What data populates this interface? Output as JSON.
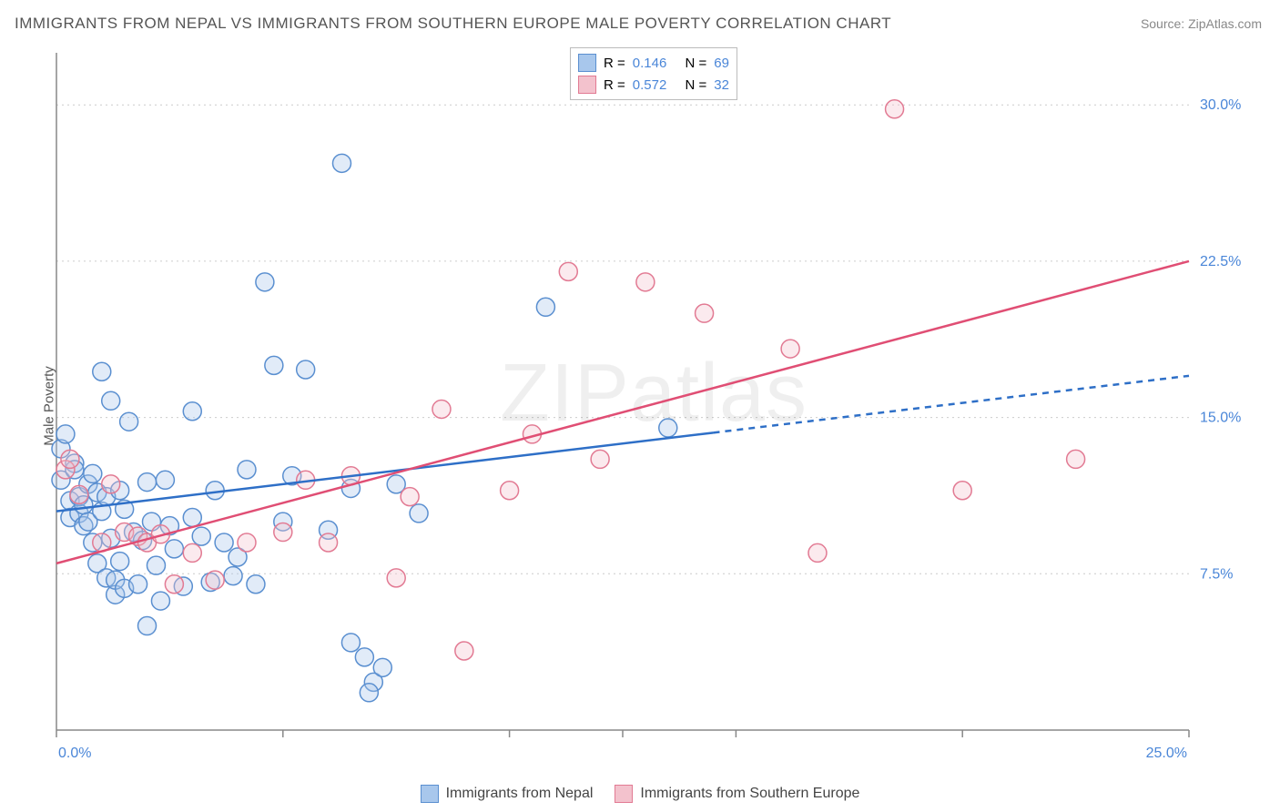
{
  "title": "IMMIGRANTS FROM NEPAL VS IMMIGRANTS FROM SOUTHERN EUROPE MALE POVERTY CORRELATION CHART",
  "source": "Source: ZipAtlas.com",
  "ylabel": "Male Poverty",
  "watermark": "ZIPatlas",
  "chart": {
    "type": "scatter",
    "background_color": "#ffffff",
    "grid_color": "#cccccc",
    "axis_color": "#888888",
    "tick_color": "#4a86d8",
    "xlim": [
      0,
      25
    ],
    "ylim": [
      0,
      32.5
    ],
    "xticks": [
      {
        "v": 0,
        "l": "0.0%"
      },
      {
        "v": 25,
        "l": "25.0%"
      }
    ],
    "xtick_minor": [
      5,
      10,
      12.5,
      15,
      20
    ],
    "yticks": [
      {
        "v": 7.5,
        "l": "7.5%"
      },
      {
        "v": 15,
        "l": "15.0%"
      },
      {
        "v": 22.5,
        "l": "22.5%"
      },
      {
        "v": 30,
        "l": "30.0%"
      }
    ],
    "marker_radius": 10,
    "marker_stroke_width": 1.5,
    "marker_fill_opacity": 0.35,
    "watermark_fontsize": 90,
    "title_fontsize": 17,
    "tick_fontsize": 16
  },
  "series": [
    {
      "name": "Immigrants from Nepal",
      "fill": "#a8c7ec",
      "stroke": "#5a8fd0",
      "trend_color": "#2e6fc7",
      "trend_dash": "none_then_dash",
      "trend_y_at_x0": 10.5,
      "trend_y_at_x25": 17.0,
      "r": "0.146",
      "n": "69",
      "points": [
        [
          0.1,
          13.5
        ],
        [
          0.1,
          12.0
        ],
        [
          0.2,
          14.2
        ],
        [
          0.3,
          11.0
        ],
        [
          0.3,
          10.2
        ],
        [
          0.4,
          12.8
        ],
        [
          0.4,
          12.5
        ],
        [
          0.5,
          10.4
        ],
        [
          0.5,
          11.2
        ],
        [
          0.6,
          9.8
        ],
        [
          0.6,
          10.8
        ],
        [
          0.7,
          11.8
        ],
        [
          0.7,
          10.0
        ],
        [
          0.8,
          12.3
        ],
        [
          0.8,
          9.0
        ],
        [
          0.9,
          11.4
        ],
        [
          0.9,
          8.0
        ],
        [
          1.0,
          17.2
        ],
        [
          1.0,
          10.5
        ],
        [
          1.1,
          11.2
        ],
        [
          1.1,
          7.3
        ],
        [
          1.2,
          15.8
        ],
        [
          1.2,
          9.2
        ],
        [
          1.3,
          6.5
        ],
        [
          1.3,
          7.2
        ],
        [
          1.4,
          11.5
        ],
        [
          1.4,
          8.1
        ],
        [
          1.5,
          10.6
        ],
        [
          1.5,
          6.8
        ],
        [
          1.6,
          14.8
        ],
        [
          1.7,
          9.5
        ],
        [
          1.8,
          7.0
        ],
        [
          1.9,
          9.1
        ],
        [
          2.0,
          11.9
        ],
        [
          2.0,
          5.0
        ],
        [
          2.1,
          10.0
        ],
        [
          2.2,
          7.9
        ],
        [
          2.3,
          6.2
        ],
        [
          2.4,
          12.0
        ],
        [
          2.5,
          9.8
        ],
        [
          2.6,
          8.7
        ],
        [
          2.8,
          6.9
        ],
        [
          3.0,
          15.3
        ],
        [
          3.0,
          10.2
        ],
        [
          3.2,
          9.3
        ],
        [
          3.4,
          7.1
        ],
        [
          3.5,
          11.5
        ],
        [
          3.7,
          9.0
        ],
        [
          3.9,
          7.4
        ],
        [
          4.0,
          8.3
        ],
        [
          4.2,
          12.5
        ],
        [
          4.4,
          7.0
        ],
        [
          4.6,
          21.5
        ],
        [
          4.8,
          17.5
        ],
        [
          5.0,
          10.0
        ],
        [
          5.2,
          12.2
        ],
        [
          5.5,
          17.3
        ],
        [
          6.0,
          9.6
        ],
        [
          6.3,
          27.2
        ],
        [
          6.5,
          11.6
        ],
        [
          6.8,
          3.5
        ],
        [
          7.0,
          2.3
        ],
        [
          7.2,
          3.0
        ],
        [
          7.5,
          11.8
        ],
        [
          8.0,
          10.4
        ],
        [
          10.8,
          20.3
        ],
        [
          13.5,
          14.5
        ],
        [
          6.9,
          1.8
        ],
        [
          6.5,
          4.2
        ]
      ]
    },
    {
      "name": "Immigrants from Southern Europe",
      "fill": "#f3c2cd",
      "stroke": "#e27a93",
      "trend_color": "#e04e74",
      "trend_dash": "none",
      "trend_y_at_x0": 8.0,
      "trend_y_at_x25": 22.5,
      "r": "0.572",
      "n": "32",
      "points": [
        [
          0.2,
          12.5
        ],
        [
          0.3,
          13.0
        ],
        [
          0.5,
          11.3
        ],
        [
          1.0,
          9.0
        ],
        [
          1.2,
          11.8
        ],
        [
          1.5,
          9.5
        ],
        [
          1.8,
          9.3
        ],
        [
          2.0,
          9.0
        ],
        [
          2.3,
          9.4
        ],
        [
          2.6,
          7.0
        ],
        [
          3.0,
          8.5
        ],
        [
          3.5,
          7.2
        ],
        [
          4.2,
          9.0
        ],
        [
          5.0,
          9.5
        ],
        [
          5.5,
          12.0
        ],
        [
          6.0,
          9.0
        ],
        [
          6.5,
          12.2
        ],
        [
          7.5,
          7.3
        ],
        [
          7.8,
          11.2
        ],
        [
          8.5,
          15.4
        ],
        [
          9.0,
          3.8
        ],
        [
          10.0,
          11.5
        ],
        [
          10.5,
          14.2
        ],
        [
          11.3,
          22.0
        ],
        [
          12.0,
          13.0
        ],
        [
          13.0,
          21.5
        ],
        [
          14.3,
          20.0
        ],
        [
          16.2,
          18.3
        ],
        [
          16.8,
          8.5
        ],
        [
          18.5,
          29.8
        ],
        [
          20.0,
          11.5
        ],
        [
          22.5,
          13.0
        ]
      ]
    }
  ],
  "legend_top": {
    "r_label": "R =",
    "n_label": "N ="
  }
}
